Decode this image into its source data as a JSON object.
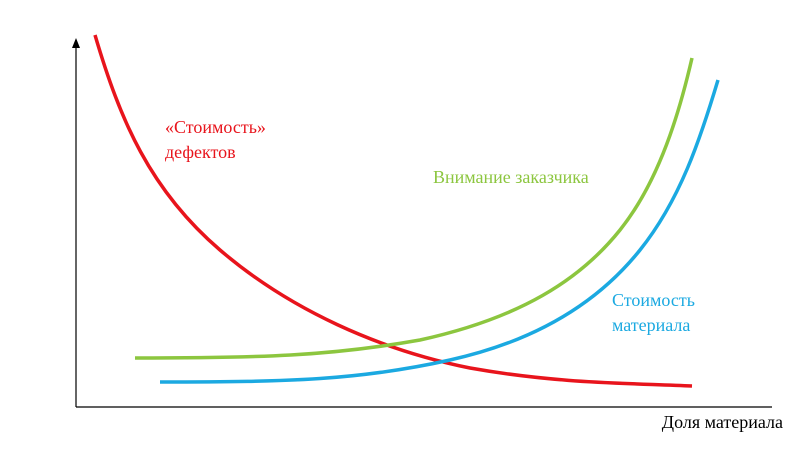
{
  "curves": {
    "defects": {
      "label": [
        "«Стоимость»",
        "дефектов"
      ]
    },
    "attention": {
      "label": [
        "Внимание заказчика"
      ]
    },
    "material": {
      "label": [
        "Стоимость",
        "материала"
      ]
    }
  },
  "x_axis_label": "Доля материала"
}
